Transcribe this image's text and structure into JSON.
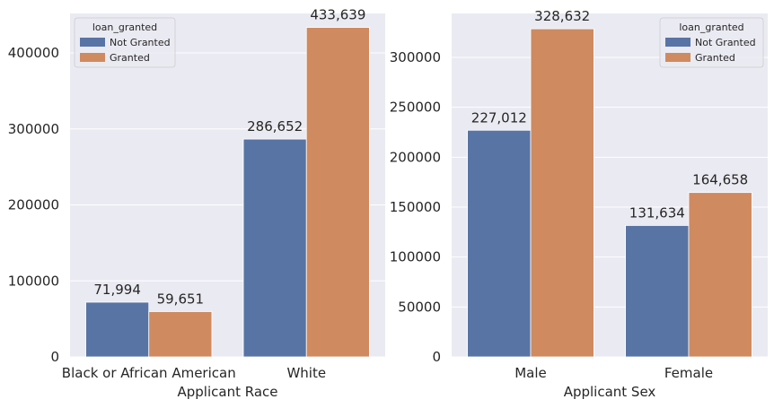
{
  "chart_data": [
    {
      "type": "bar",
      "xlabel": "Applicant Race",
      "ylabel": "",
      "categories": [
        "Black or African American",
        "White"
      ],
      "series": [
        {
          "name": "Not Granted",
          "values": [
            71994,
            286652
          ],
          "labels": [
            "71,994",
            "286,652"
          ]
        },
        {
          "name": "Granted",
          "values": [
            59651,
            433639
          ],
          "labels": [
            "59,651",
            "433,639"
          ]
        }
      ],
      "ylim": [
        0,
        452000
      ],
      "yticks": [
        0,
        100000,
        200000,
        300000,
        400000
      ],
      "ytick_labels": [
        "0",
        "100000",
        "200000",
        "300000",
        "400000"
      ],
      "legend": {
        "title": "loan_granted",
        "placement": "top-left"
      },
      "grid": true
    },
    {
      "type": "bar",
      "xlabel": "Applicant Sex",
      "ylabel": "",
      "categories": [
        "Male",
        "Female"
      ],
      "series": [
        {
          "name": "Not Granted",
          "values": [
            227012,
            131634
          ],
          "labels": [
            "227,012",
            "131,634"
          ]
        },
        {
          "name": "Granted",
          "values": [
            328632,
            164658
          ],
          "labels": [
            "328,632",
            "164,658"
          ]
        }
      ],
      "ylim": [
        0,
        344000
      ],
      "yticks": [
        0,
        50000,
        100000,
        150000,
        200000,
        250000,
        300000
      ],
      "ytick_labels": [
        "0",
        "50000",
        "100000",
        "150000",
        "200000",
        "250000",
        "300000"
      ],
      "legend": {
        "title": "loan_granted",
        "placement": "top-right"
      },
      "grid": true
    }
  ],
  "colors": {
    "not_granted": "#5874a5",
    "granted": "#cf8a60",
    "axes_bg": "#eaeaf2",
    "grid": "#ffffff"
  }
}
